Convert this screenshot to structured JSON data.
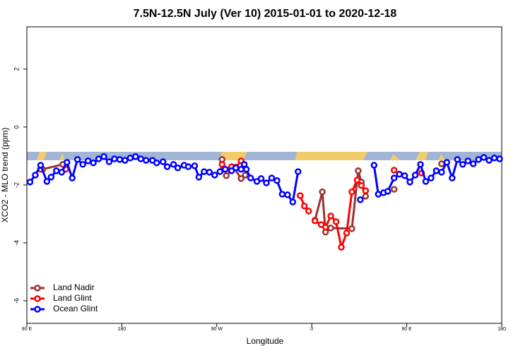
{
  "chart_data": {
    "type": "line",
    "title": "7.5N-12.5N July (Ver 10)   2015-01-01 to 2020-12-18",
    "x_label": "Longitude",
    "y_label": "XCO2 - MLO trend (ppm)",
    "xlim": [
      90,
      540
    ],
    "ylim": [
      -6.78,
      3.46
    ],
    "xticks": [
      {
        "value": 90,
        "label": "90 E"
      },
      180,
      {
        "value": 270,
        "label": "90 W"
      },
      {
        "value": 360,
        "label": "0"
      },
      {
        "value": 450,
        "label": "90 E"
      },
      {
        "value": 540,
        "label": "180"
      }
    ],
    "yticks": [
      2,
      0,
      -2,
      -4,
      -6
    ],
    "legend": "bottom-left",
    "series": [
      {
        "name": "Land Nadir",
        "color": "#993333",
        "x": [
          105,
          124,
          200,
          275,
          279,
          286,
          293,
          297,
          330,
          363,
          370,
          373,
          378,
          398,
          404,
          407,
          411,
          425,
          438,
          460,
          483
        ],
        "values": [
          -1.46,
          -1.29,
          null,
          -1.12,
          -1.68,
          -1.39,
          -1.78,
          -1.66,
          null,
          -3.22,
          -2.24,
          -3.63,
          -3.49,
          -3.51,
          -1.51,
          -1.9,
          -2.39,
          null,
          -2.15,
          null,
          -1.27
        ]
      },
      {
        "name": "Land Glint",
        "color": "#ff0000",
        "x": [
          103,
          115,
          127,
          200,
          275,
          276,
          284,
          288,
          293,
          320,
          349,
          353,
          357,
          360,
          363,
          369,
          373,
          378,
          383,
          388,
          393,
          398,
          403,
          407,
          411,
          425,
          438,
          450,
          464
        ],
        "values": [
          -1.46,
          null,
          -1.46,
          null,
          -1.29,
          -1.46,
          -1.37,
          -1.39,
          -1.17,
          null,
          -2.37,
          -2.73,
          -2.9,
          null,
          -3.24,
          -3.37,
          -3.46,
          -3.07,
          -3.27,
          -4.15,
          -3.66,
          -2.24,
          -1.83,
          -2.02,
          -2.2,
          null,
          -1.49,
          null,
          -1.59
        ]
      },
      {
        "name": "Ocean Glint",
        "color": "#0000ff",
        "x": [
          93,
          98,
          103,
          109,
          113,
          118,
          123,
          128,
          133,
          138,
          143,
          148,
          153,
          158,
          163,
          168,
          173,
          178,
          183,
          188,
          193,
          198,
          203,
          209,
          213,
          219,
          223,
          229,
          233,
          239,
          243,
          249,
          253,
          258,
          263,
          268,
          273,
          278,
          284,
          288,
          293,
          296,
          298,
          302,
          308,
          312,
          317,
          322,
          327,
          332,
          337,
          342,
          347,
          380,
          406,
          412,
          419,
          423,
          428,
          432,
          438,
          443,
          448,
          453,
          458,
          463,
          468,
          473,
          478,
          483,
          488,
          493,
          498,
          503,
          508,
          513,
          518,
          523,
          528,
          533,
          538
        ],
        "values": [
          -1.9,
          -1.66,
          -1.32,
          -1.88,
          -1.73,
          -1.51,
          -1.56,
          -1.22,
          -1.76,
          -1.12,
          -1.29,
          -1.17,
          -1.24,
          -1.1,
          -1.02,
          -1.2,
          -1.1,
          -1.12,
          -1.15,
          -1.07,
          -1.02,
          -1.1,
          -1.15,
          -1.15,
          -1.24,
          -1.2,
          -1.37,
          -1.29,
          -1.41,
          -1.32,
          -1.37,
          -1.34,
          -1.73,
          -1.54,
          -1.56,
          -1.66,
          -1.54,
          -1.46,
          -1.51,
          -1.41,
          -1.46,
          -1.29,
          -1.46,
          -1.76,
          -1.88,
          -1.78,
          -1.93,
          -1.76,
          -1.85,
          -2.32,
          -2.34,
          -2.59,
          -1.54,
          null,
          -2.51,
          null,
          -1.32,
          -2.32,
          -2.27,
          -2.22,
          -1.76,
          -1.63,
          -1.68,
          -1.9,
          -1.66,
          -1.29,
          -1.88,
          -1.76,
          -1.51,
          -1.56,
          -1.22,
          -1.76,
          -1.12,
          -1.29,
          -1.17,
          -1.27,
          -1.12,
          -1.05,
          -1.15,
          -1.07,
          -1.1
        ]
      }
    ]
  }
}
